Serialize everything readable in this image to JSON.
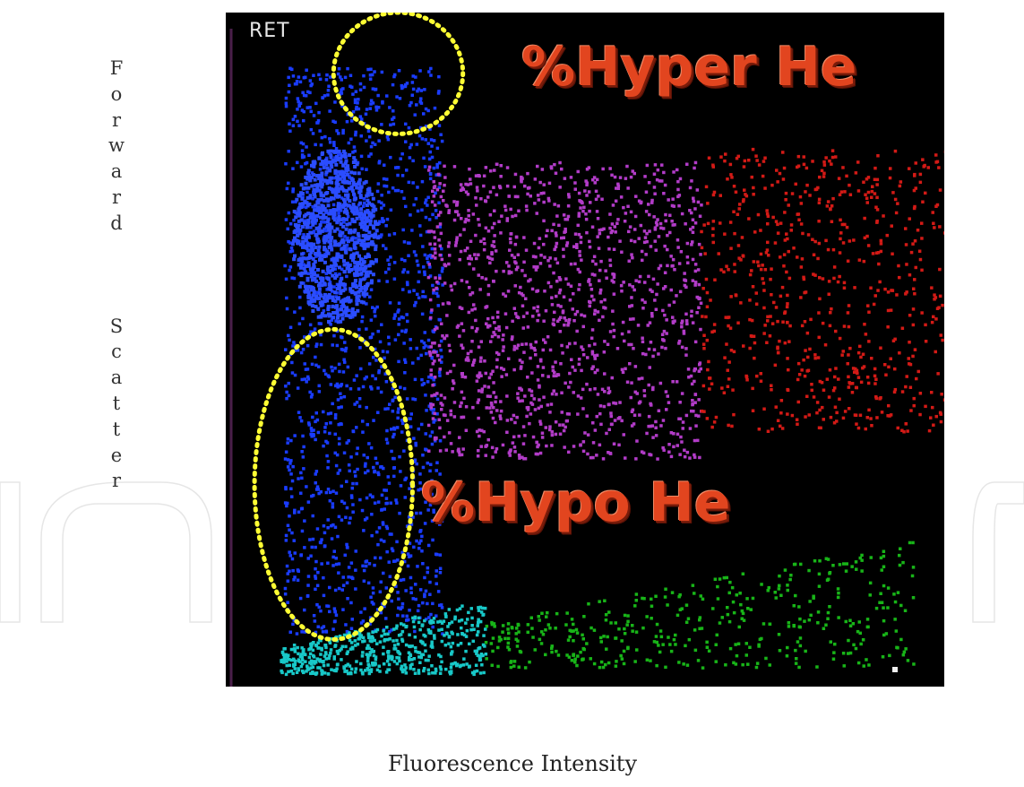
{
  "chart_data": {
    "type": "scatter",
    "title": "",
    "panel_label": "RET",
    "xlabel": "Fluorescence Intensity",
    "ylabel": "Forward Scatter",
    "xlim": [
      0,
      100
    ],
    "ylim": [
      0,
      100
    ],
    "grid": false,
    "legend": "none",
    "annotations": [
      {
        "text": "%Hyper He",
        "color": "#e2451f",
        "region": "top"
      },
      {
        "text": "%Hypo He",
        "color": "#e2451f",
        "region": "bottom-left"
      }
    ],
    "highlight_regions": [
      {
        "name": "hyper",
        "color": "#ffff33",
        "style": "dotted",
        "cx": 24,
        "cy": 91,
        "rx": 9,
        "ry": 9
      },
      {
        "name": "hypo",
        "color": "#ffff33",
        "style": "dotted",
        "cx": 15,
        "cy": 30,
        "rx": 11,
        "ry": 23
      }
    ],
    "series": [
      {
        "color": "#1a3cff",
        "core": {
          "cx": 15,
          "cy": 67,
          "rx": 6,
          "ry": 13,
          "n": 900
        },
        "spread": {
          "xmin": 8,
          "xmax": 30,
          "ymin": 8,
          "ymax": 92,
          "n": 1400
        }
      },
      {
        "color": "#b23cc8",
        "spread": {
          "xmin": 28,
          "xmax": 66,
          "ymin": 34,
          "ymax": 78,
          "n": 1300
        }
      },
      {
        "color": "#d21a16",
        "spread": {
          "xmin": 66,
          "xmax": 100,
          "ymin": 38,
          "ymax": 80,
          "n": 650
        }
      },
      {
        "color": "#18b418",
        "spread": {
          "xmin": 36,
          "xmax": 96,
          "ymin": 3,
          "ymax": 22,
          "n": 420
        }
      },
      {
        "color": "#18c8c8",
        "spread": {
          "xmin": 7,
          "xmax": 36,
          "ymin": 2,
          "ymax": 13,
          "n": 520
        }
      }
    ]
  }
}
